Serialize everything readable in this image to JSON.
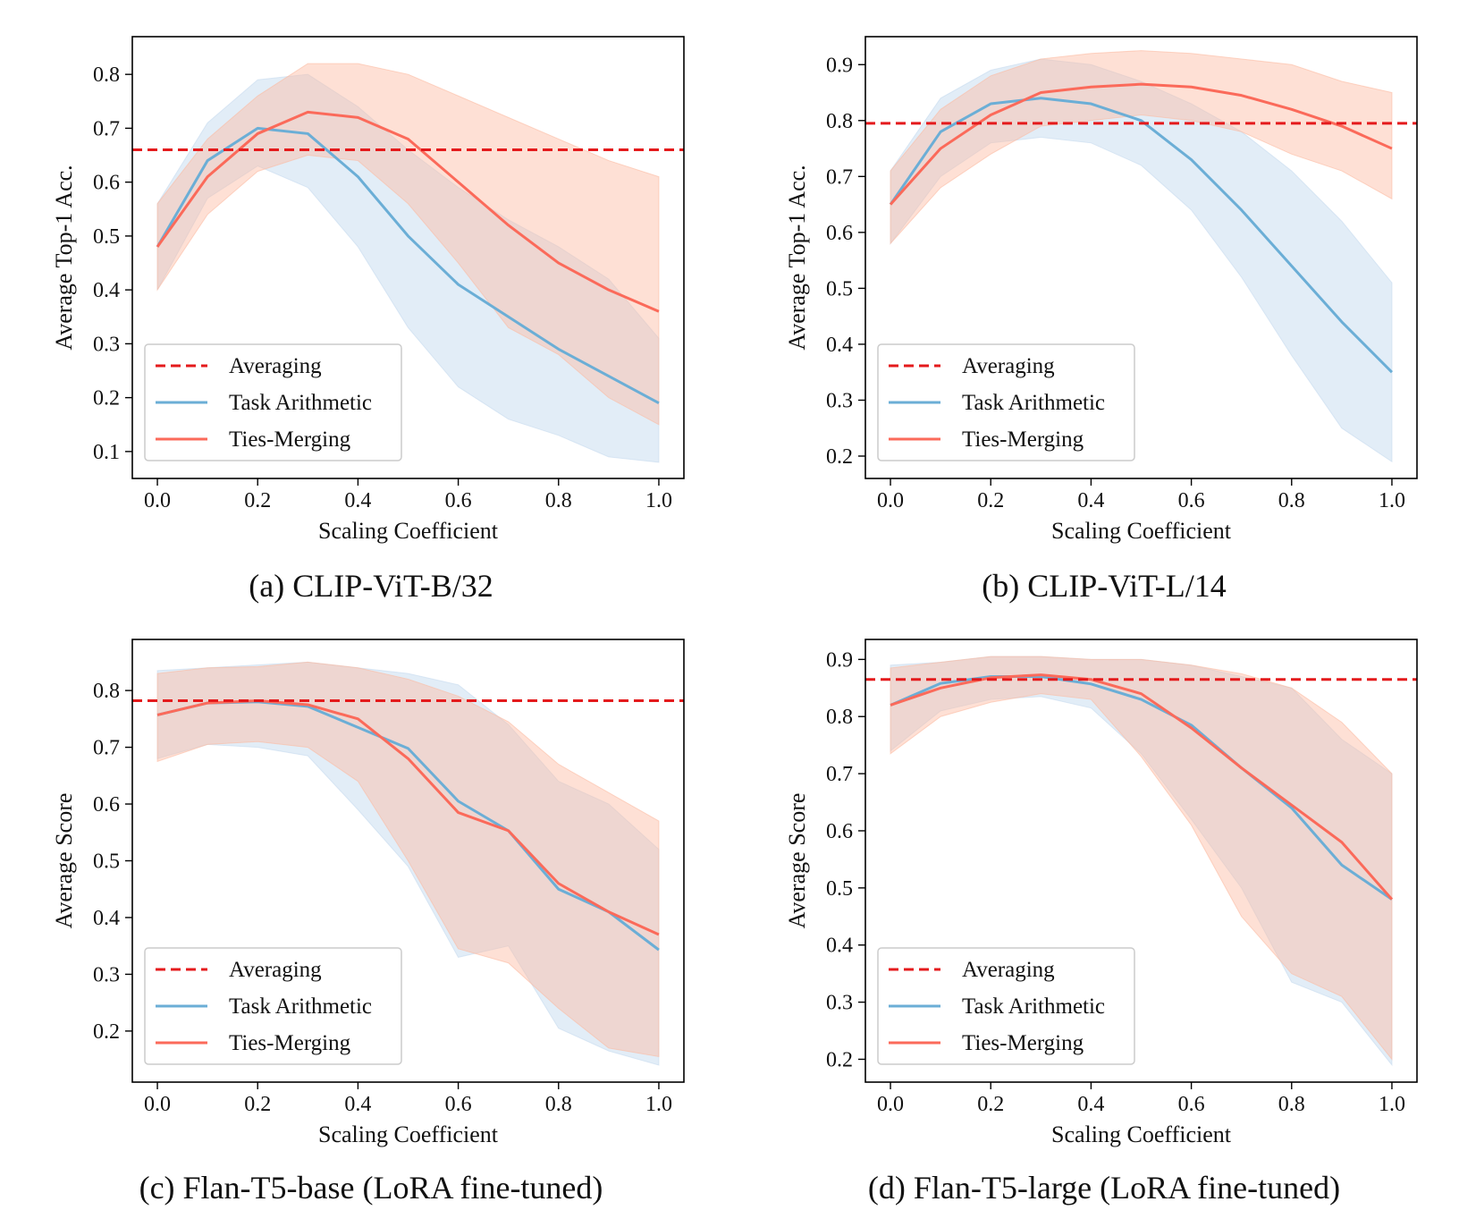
{
  "legend_labels": [
    "Averaging",
    "Task Arithmetic",
    "Ties-Merging"
  ],
  "colors": {
    "averaging": "#e41a1c",
    "task_arithmetic": "#6baed6",
    "ties_merging": "#fb6a5a",
    "task_arithmetic_band": "#c6dbef",
    "ties_merging_band": "#fcbba1"
  },
  "chart_data": [
    {
      "type": "line",
      "caption": "(a) CLIP-ViT-B/32",
      "xlabel": "Scaling Coefficient",
      "ylabel": "Average Top-1 Acc.",
      "xlim": [
        -0.05,
        1.05
      ],
      "ylim": [
        0.05,
        0.87
      ],
      "xticks": [
        "0.0",
        "0.2",
        "0.4",
        "0.6",
        "0.8",
        "1.0"
      ],
      "yticks": [
        "0.1",
        "0.2",
        "0.3",
        "0.4",
        "0.5",
        "0.6",
        "0.7",
        "0.8"
      ],
      "legend_position": "lower-left",
      "grid": false,
      "x": [
        0.0,
        0.1,
        0.2,
        0.3,
        0.4,
        0.5,
        0.6,
        0.7,
        0.8,
        0.9,
        1.0
      ],
      "averaging": 0.66,
      "series": [
        {
          "name": "Task Arithmetic",
          "values": [
            0.48,
            0.64,
            0.7,
            0.69,
            0.61,
            0.5,
            0.41,
            0.35,
            0.29,
            0.24,
            0.19
          ],
          "upper": [
            0.56,
            0.71,
            0.79,
            0.8,
            0.74,
            0.66,
            0.59,
            0.53,
            0.48,
            0.42,
            0.31
          ],
          "lower": [
            0.4,
            0.57,
            0.63,
            0.59,
            0.48,
            0.33,
            0.22,
            0.16,
            0.13,
            0.09,
            0.08
          ]
        },
        {
          "name": "Ties-Merging",
          "values": [
            0.48,
            0.61,
            0.69,
            0.73,
            0.72,
            0.68,
            0.6,
            0.52,
            0.45,
            0.4,
            0.36
          ],
          "upper": [
            0.56,
            0.68,
            0.76,
            0.82,
            0.82,
            0.8,
            0.76,
            0.72,
            0.68,
            0.64,
            0.61
          ],
          "lower": [
            0.4,
            0.54,
            0.62,
            0.65,
            0.64,
            0.56,
            0.45,
            0.33,
            0.28,
            0.2,
            0.15
          ]
        }
      ]
    },
    {
      "type": "line",
      "caption": "(b) CLIP-ViT-L/14",
      "xlabel": "Scaling Coefficient",
      "ylabel": "Average Top-1 Acc.",
      "xlim": [
        -0.05,
        1.05
      ],
      "ylim": [
        0.16,
        0.95
      ],
      "xticks": [
        "0.0",
        "0.2",
        "0.4",
        "0.6",
        "0.8",
        "1.0"
      ],
      "yticks": [
        "0.2",
        "0.3",
        "0.4",
        "0.5",
        "0.6",
        "0.7",
        "0.8",
        "0.9"
      ],
      "legend_position": "lower-left",
      "grid": false,
      "x": [
        0.0,
        0.1,
        0.2,
        0.3,
        0.4,
        0.5,
        0.6,
        0.7,
        0.8,
        0.9,
        1.0
      ],
      "averaging": 0.795,
      "series": [
        {
          "name": "Task Arithmetic",
          "values": [
            0.65,
            0.78,
            0.83,
            0.84,
            0.83,
            0.8,
            0.73,
            0.64,
            0.54,
            0.44,
            0.35
          ],
          "upper": [
            0.71,
            0.84,
            0.89,
            0.91,
            0.9,
            0.87,
            0.83,
            0.78,
            0.71,
            0.62,
            0.51
          ],
          "lower": [
            0.58,
            0.7,
            0.76,
            0.77,
            0.76,
            0.72,
            0.64,
            0.52,
            0.38,
            0.25,
            0.19
          ]
        },
        {
          "name": "Ties-Merging",
          "values": [
            0.65,
            0.75,
            0.81,
            0.85,
            0.86,
            0.865,
            0.86,
            0.845,
            0.82,
            0.79,
            0.75
          ],
          "upper": [
            0.71,
            0.82,
            0.88,
            0.91,
            0.92,
            0.925,
            0.92,
            0.91,
            0.9,
            0.87,
            0.85
          ],
          "lower": [
            0.58,
            0.68,
            0.74,
            0.79,
            0.8,
            0.81,
            0.8,
            0.78,
            0.74,
            0.71,
            0.66
          ]
        }
      ]
    },
    {
      "type": "line",
      "caption": "(c) Flan-T5-base (LoRA fine-tuned)",
      "xlabel": "Scaling Coefficient",
      "ylabel": "Average Score",
      "xlim": [
        -0.05,
        1.05
      ],
      "ylim": [
        0.11,
        0.89
      ],
      "xticks": [
        "0.0",
        "0.2",
        "0.4",
        "0.6",
        "0.8",
        "1.0"
      ],
      "yticks": [
        "0.2",
        "0.3",
        "0.4",
        "0.5",
        "0.6",
        "0.7",
        "0.8"
      ],
      "legend_position": "lower-left",
      "grid": false,
      "x": [
        0.0,
        0.1,
        0.2,
        0.3,
        0.4,
        0.5,
        0.6,
        0.7,
        0.8,
        0.9,
        1.0
      ],
      "averaging": 0.782,
      "series": [
        {
          "name": "Task Arithmetic",
          "values": [
            0.757,
            0.778,
            0.78,
            0.772,
            0.735,
            0.698,
            0.605,
            0.553,
            0.45,
            0.41,
            0.343
          ],
          "upper": [
            0.835,
            0.84,
            0.845,
            0.85,
            0.84,
            0.83,
            0.81,
            0.74,
            0.64,
            0.6,
            0.52
          ],
          "lower": [
            0.68,
            0.705,
            0.7,
            0.685,
            0.59,
            0.49,
            0.33,
            0.35,
            0.205,
            0.165,
            0.14
          ]
        },
        {
          "name": "Ties-Merging",
          "values": [
            0.757,
            0.778,
            0.782,
            0.775,
            0.75,
            0.68,
            0.585,
            0.553,
            0.46,
            0.41,
            0.37
          ],
          "upper": [
            0.83,
            0.84,
            0.842,
            0.85,
            0.84,
            0.82,
            0.79,
            0.745,
            0.67,
            0.62,
            0.57
          ],
          "lower": [
            0.675,
            0.705,
            0.71,
            0.7,
            0.64,
            0.5,
            0.345,
            0.32,
            0.24,
            0.17,
            0.155
          ]
        }
      ]
    },
    {
      "type": "line",
      "caption": "(d) Flan-T5-large (LoRA fine-tuned)",
      "xlabel": "Scaling Coefficient",
      "ylabel": "Average Score",
      "xlim": [
        -0.05,
        1.05
      ],
      "ylim": [
        0.16,
        0.935
      ],
      "xticks": [
        "0.0",
        "0.2",
        "0.4",
        "0.6",
        "0.8",
        "1.0"
      ],
      "yticks": [
        "0.2",
        "0.3",
        "0.4",
        "0.5",
        "0.6",
        "0.7",
        "0.8",
        "0.9"
      ],
      "legend_position": "lower-left",
      "grid": false,
      "x": [
        0.0,
        0.1,
        0.2,
        0.3,
        0.4,
        0.5,
        0.6,
        0.7,
        0.8,
        0.9,
        1.0
      ],
      "averaging": 0.865,
      "series": [
        {
          "name": "Task Arithmetic",
          "values": [
            0.82,
            0.858,
            0.87,
            0.87,
            0.857,
            0.83,
            0.785,
            0.71,
            0.64,
            0.54,
            0.48
          ],
          "upper": [
            0.89,
            0.895,
            0.905,
            0.905,
            0.9,
            0.9,
            0.89,
            0.87,
            0.85,
            0.76,
            0.7
          ],
          "lower": [
            0.74,
            0.81,
            0.83,
            0.835,
            0.815,
            0.735,
            0.62,
            0.5,
            0.335,
            0.3,
            0.19
          ]
        },
        {
          "name": "Ties-Merging",
          "values": [
            0.82,
            0.85,
            0.868,
            0.873,
            0.865,
            0.84,
            0.78,
            0.71,
            0.645,
            0.58,
            0.48
          ],
          "upper": [
            0.885,
            0.895,
            0.905,
            0.905,
            0.9,
            0.9,
            0.89,
            0.875,
            0.85,
            0.79,
            0.7
          ],
          "lower": [
            0.735,
            0.8,
            0.825,
            0.84,
            0.83,
            0.73,
            0.61,
            0.45,
            0.35,
            0.31,
            0.2
          ]
        }
      ]
    }
  ]
}
